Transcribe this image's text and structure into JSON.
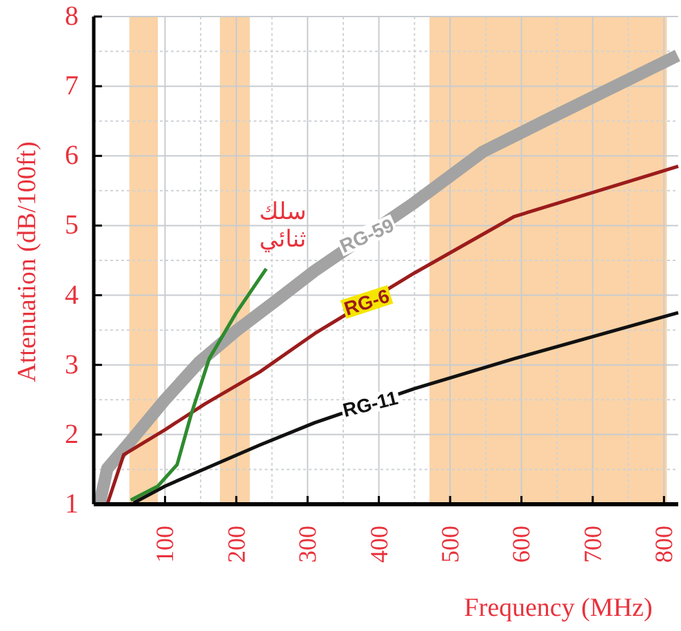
{
  "chart_data": {
    "type": "line",
    "xlabel": "Frequency (MHz)",
    "ylabel": "Attenuation (dB/100ft)",
    "xlim": [
      0,
      820
    ],
    "xticks": [
      100,
      200,
      300,
      400,
      500,
      600,
      700,
      800
    ],
    "ylim": [
      1,
      8
    ],
    "yticks": [
      1,
      2,
      3,
      4,
      5,
      6,
      7,
      8
    ],
    "grid": true,
    "line_style": "solid",
    "bands": [
      {
        "axis": "x",
        "from": 50,
        "to": 90,
        "color": "#fbd3a6"
      },
      {
        "axis": "x",
        "from": 177,
        "to": 219,
        "color": "#fbd3a6"
      },
      {
        "axis": "x",
        "from": 471,
        "to": 804,
        "color": "#fbd3a6"
      }
    ],
    "series": [
      {
        "name": "RG-59",
        "color": "#a3a3a3",
        "x": [
          8,
          19,
          52,
          100,
          148,
          200,
          258,
          310,
          450,
          546,
          642,
          819
        ],
        "values": [
          1.0,
          1.51,
          1.91,
          2.5,
          3.04,
          3.49,
          3.94,
          4.35,
          5.33,
          6.06,
          6.55,
          7.44
        ]
      },
      {
        "name": "RG-6",
        "color": "#9b1c1c",
        "x": [
          19,
          42,
          100,
          156,
          233,
          310,
          450,
          590,
          820
        ],
        "values": [
          1.0,
          1.71,
          2.07,
          2.44,
          2.9,
          3.45,
          4.32,
          5.13,
          5.85
        ]
      },
      {
        "name": "RG-11",
        "color": "#111111",
        "x": [
          56,
          100,
          156,
          233,
          310,
          450,
          590,
          820
        ],
        "values": [
          1.02,
          1.26,
          1.51,
          1.85,
          2.17,
          2.66,
          3.09,
          3.75
        ]
      },
      {
        "name": "سلك\nثنائي",
        "color": "#2e8b2e",
        "x": [
          52,
          90,
          117,
          137,
          162,
          200,
          242
        ],
        "values": [
          1.06,
          1.26,
          1.57,
          2.3,
          3.09,
          3.75,
          4.38
        ]
      }
    ]
  }
}
